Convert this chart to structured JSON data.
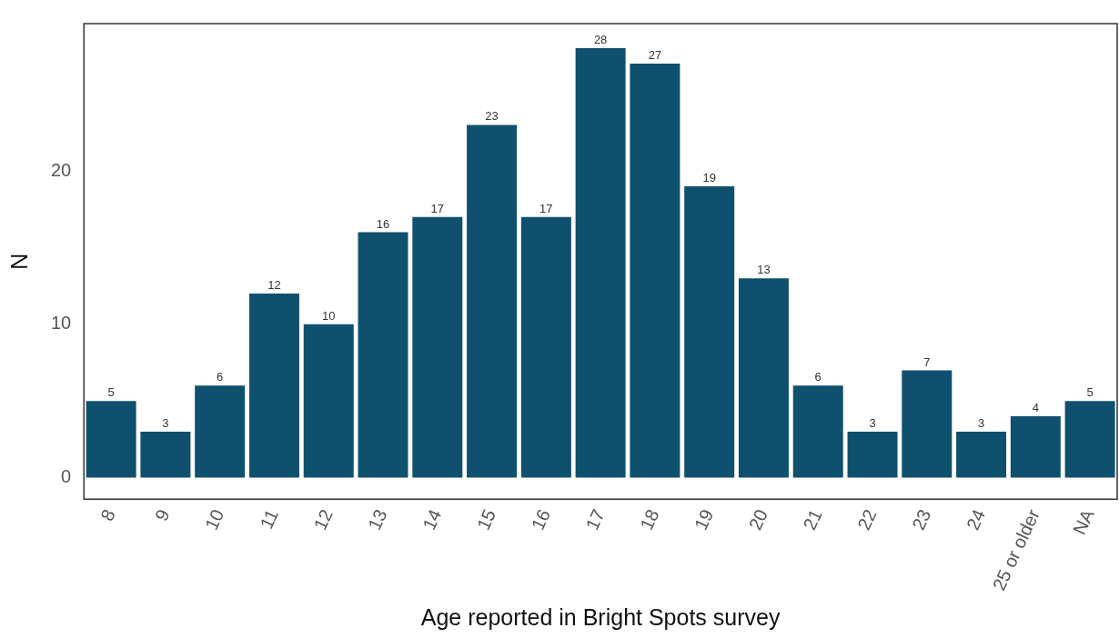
{
  "chart_data": {
    "type": "bar",
    "xlabel": "Age reported in Bright Spots survey",
    "ylabel": "N",
    "categories": [
      "8",
      "9",
      "10",
      "11",
      "12",
      "13",
      "14",
      "15",
      "16",
      "17",
      "18",
      "19",
      "20",
      "21",
      "22",
      "23",
      "24",
      "25 or older",
      "NA"
    ],
    "values": [
      5,
      3,
      6,
      12,
      10,
      16,
      17,
      23,
      17,
      28,
      27,
      19,
      13,
      6,
      3,
      7,
      3,
      4,
      5
    ],
    "color": "#10506f",
    "ylim": [
      -1.4,
      29.6
    ],
    "yticks": [
      0,
      10,
      20
    ],
    "grid": false,
    "legend": false,
    "data_labels": true
  }
}
